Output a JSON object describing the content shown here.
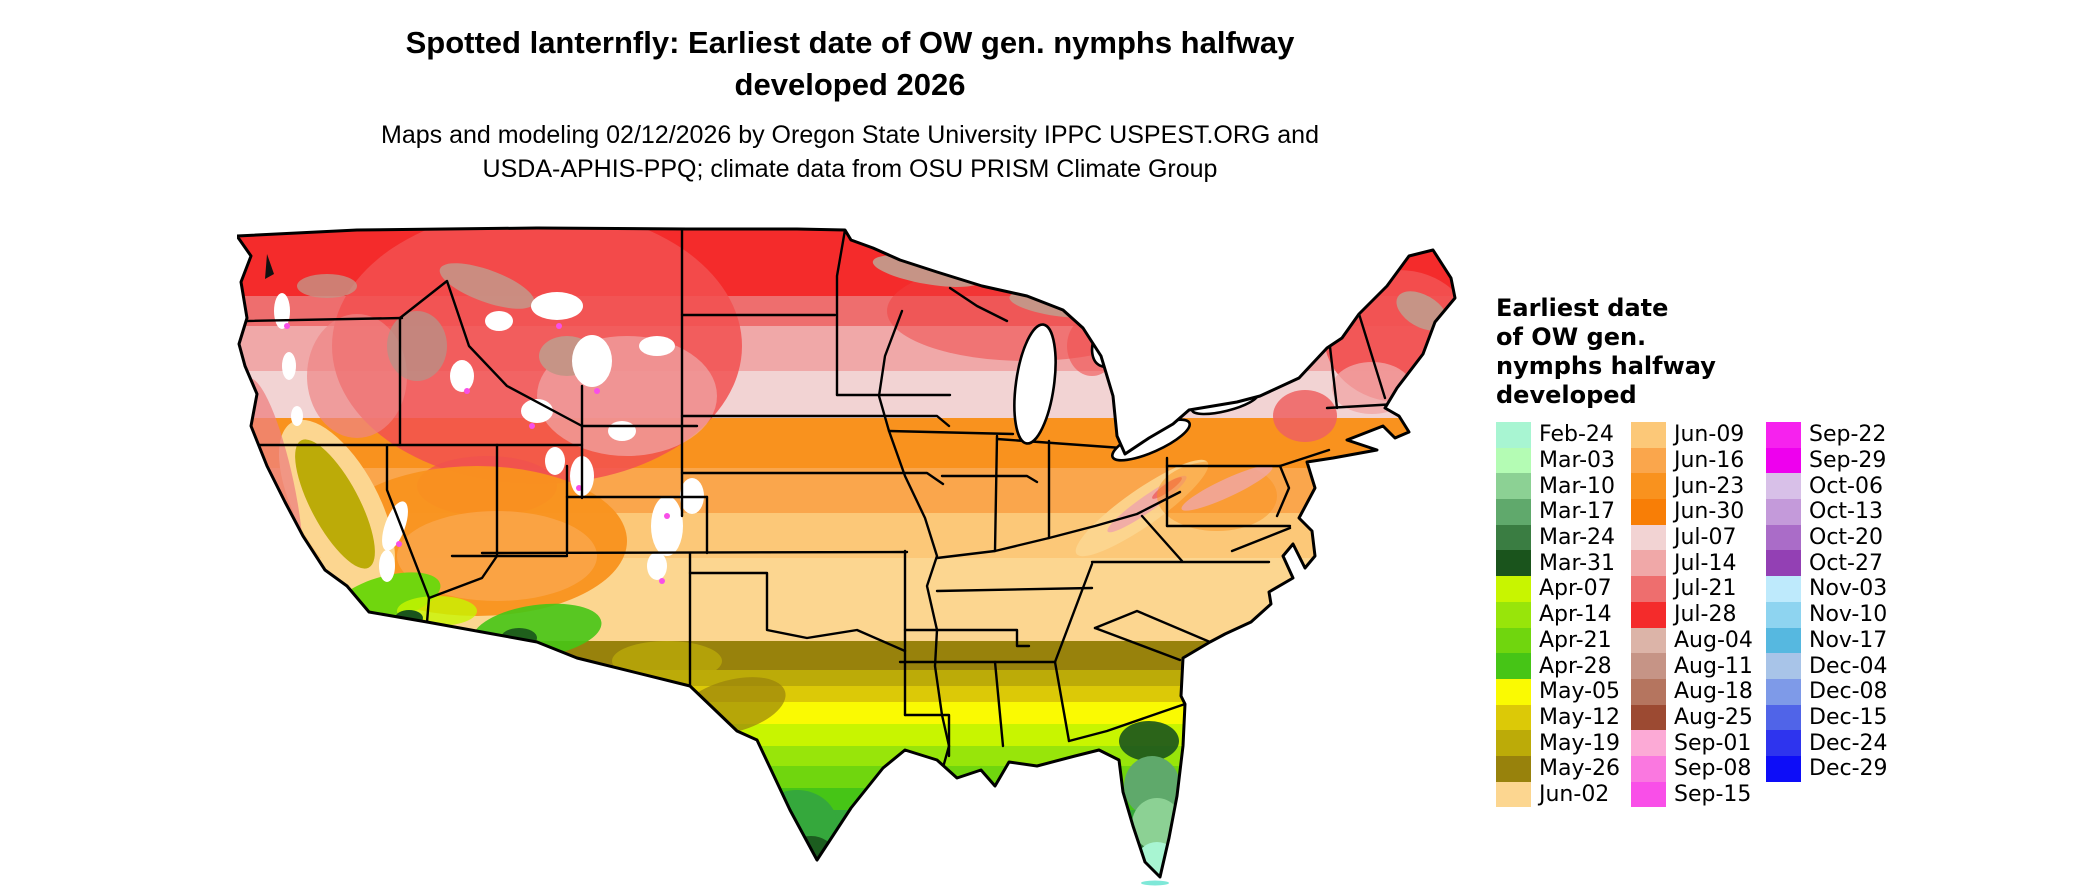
{
  "title": {
    "line1": "Spotted lanternfly: Earliest date of OW gen. nymphs halfway",
    "line2": "developed 2026"
  },
  "subtitle": {
    "line1": "Maps and modeling 02/12/2026 by Oregon State University IPPC USPEST.ORG and",
    "line2": "USDA-APHIS-PPQ; climate data from OSU PRISM Climate Group"
  },
  "map": {
    "region": "Contiguous United States",
    "kind": "choropleth raster of earliest date of overwintering generation nymphs halfway developed",
    "no_data_color": "#ffffff",
    "border_color": "#000000"
  },
  "legend": {
    "title_lines": [
      "Earliest date",
      "of OW gen.",
      "nymphs halfway",
      "developed"
    ],
    "columns": [
      [
        {
          "label": "Feb-24",
          "color": "#a8f5d2"
        },
        {
          "label": "Mar-03",
          "color": "#b4fcb4"
        },
        {
          "label": "Mar-10",
          "color": "#8cd194"
        },
        {
          "label": "Mar-17",
          "color": "#60a96c"
        },
        {
          "label": "Mar-24",
          "color": "#3a7d42"
        },
        {
          "label": "Mar-31",
          "color": "#1a541c"
        },
        {
          "label": "Apr-07",
          "color": "#c8f500"
        },
        {
          "label": "Apr-14",
          "color": "#98e50a"
        },
        {
          "label": "Apr-21",
          "color": "#70d60e"
        },
        {
          "label": "Apr-28",
          "color": "#46c516"
        },
        {
          "label": "May-05",
          "color": "#fafa02"
        },
        {
          "label": "May-12",
          "color": "#dcc907"
        },
        {
          "label": "May-19",
          "color": "#bcab08"
        },
        {
          "label": "May-26",
          "color": "#98820c"
        },
        {
          "label": "Jun-02",
          "color": "#fcd690"
        }
      ],
      [
        {
          "label": "Jun-09",
          "color": "#fcc878"
        },
        {
          "label": "Jun-16",
          "color": "#faa64c"
        },
        {
          "label": "Jun-23",
          "color": "#f9921e"
        },
        {
          "label": "Jun-30",
          "color": "#f87e06"
        },
        {
          "label": "Jul-07",
          "color": "#f2d3d3"
        },
        {
          "label": "Jul-14",
          "color": "#f0a8a8"
        },
        {
          "label": "Jul-21",
          "color": "#ee6e6e"
        },
        {
          "label": "Jul-28",
          "color": "#f42b2b"
        },
        {
          "label": "Aug-04",
          "color": "#dcb4a8"
        },
        {
          "label": "Aug-11",
          "color": "#c69486"
        },
        {
          "label": "Aug-18",
          "color": "#b5755f"
        },
        {
          "label": "Aug-25",
          "color": "#9c4a32"
        },
        {
          "label": "Sep-01",
          "color": "#fcaad6"
        },
        {
          "label": "Sep-08",
          "color": "#fa78e0"
        },
        {
          "label": "Sep-15",
          "color": "#f94fe8"
        }
      ],
      [
        {
          "label": "Sep-22",
          "color": "#f622ee"
        },
        {
          "label": "Sep-29",
          "color": "#ee00ee"
        },
        {
          "label": "Oct-06",
          "color": "#d8c0e8"
        },
        {
          "label": "Oct-13",
          "color": "#c49ada"
        },
        {
          "label": "Oct-20",
          "color": "#aa6cc8"
        },
        {
          "label": "Oct-27",
          "color": "#9340b4"
        },
        {
          "label": "Nov-03",
          "color": "#beeafc"
        },
        {
          "label": "Nov-10",
          "color": "#8ed4f0"
        },
        {
          "label": "Nov-17",
          "color": "#56b8e0"
        },
        {
          "label": "Dec-04",
          "color": "#a8c4e8"
        },
        {
          "label": "Dec-08",
          "color": "#7e9ae8"
        },
        {
          "label": "Dec-15",
          "color": "#5064e8"
        },
        {
          "label": "Dec-24",
          "color": "#2e34ee"
        },
        {
          "label": "Dec-29",
          "color": "#0d0df8"
        }
      ]
    ]
  }
}
